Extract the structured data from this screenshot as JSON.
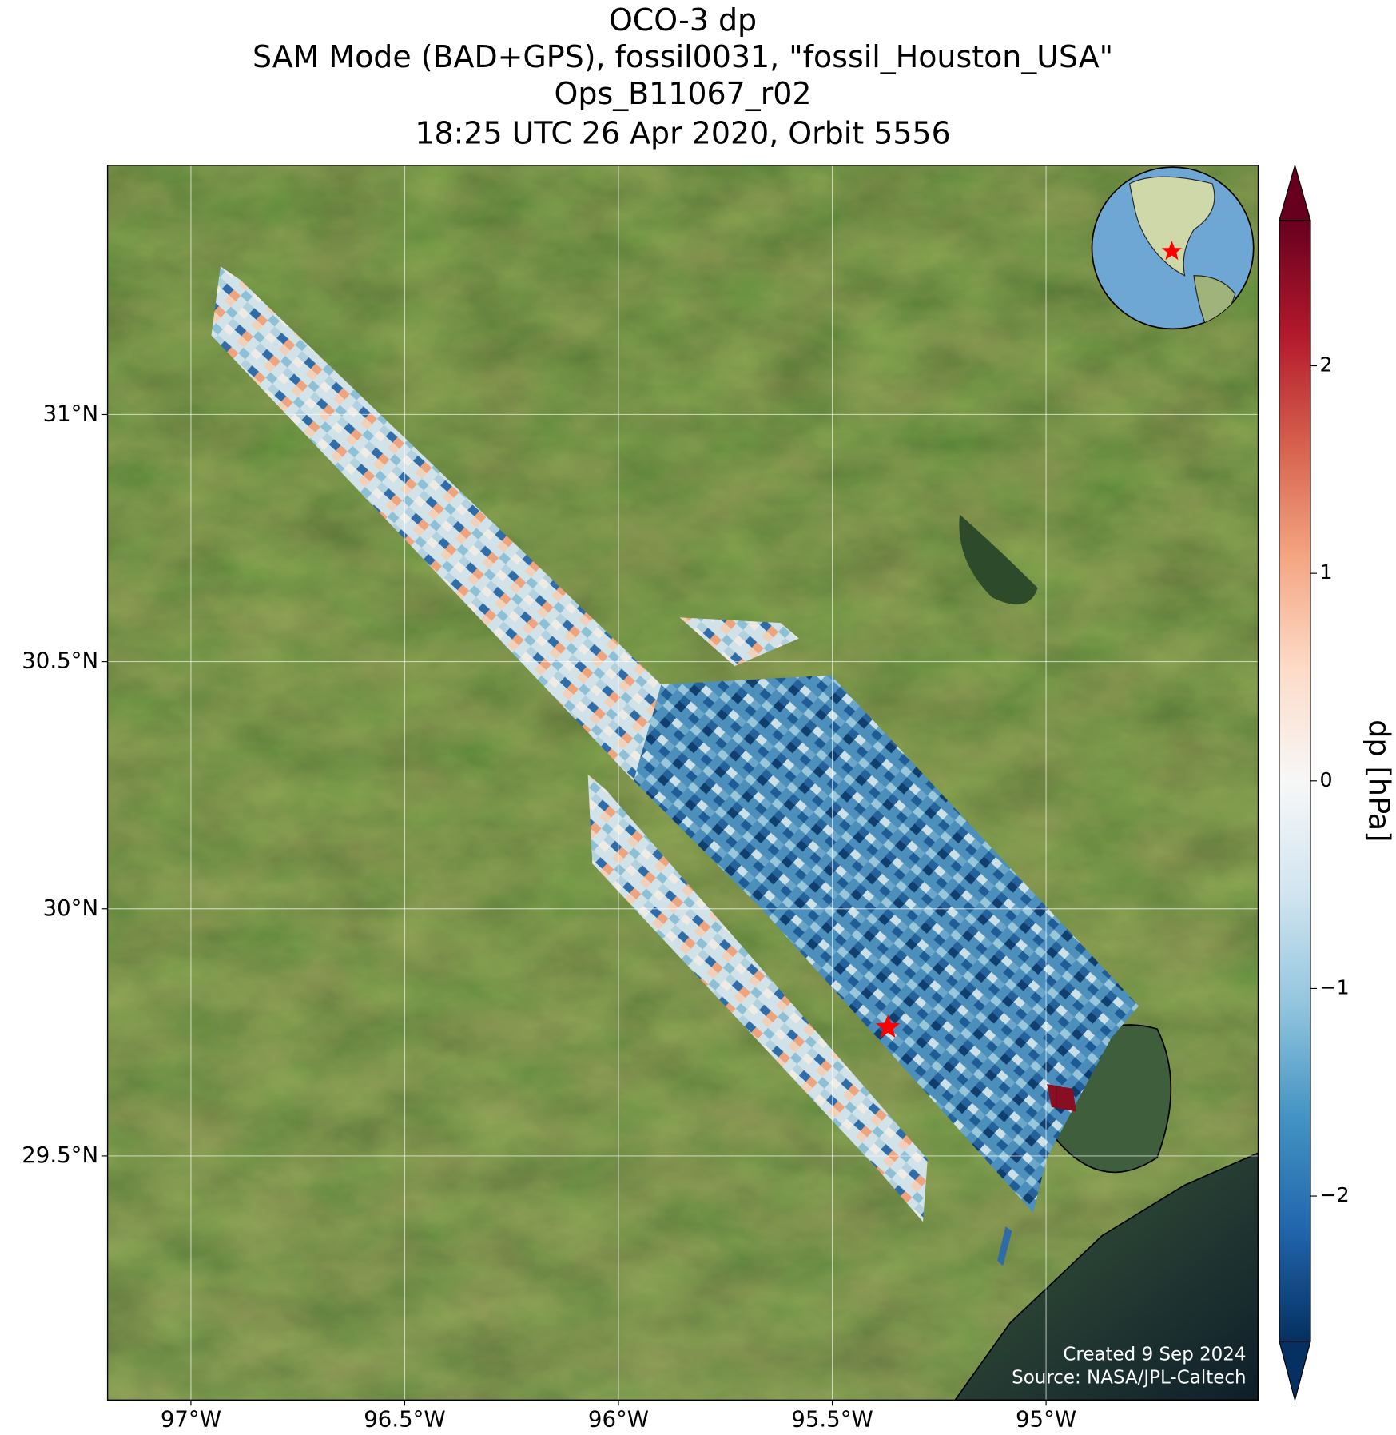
{
  "title_lines": [
    "OCO-3 dp",
    "SAM Mode (BAD+GPS), fossil0031, \"fossil_Houston_USA\"",
    "Ops_B11067_r02",
    "18:25 UTC 26 Apr 2020, Orbit 5556"
  ],
  "map": {
    "xlim": [
      -97.195,
      -94.504
    ],
    "ylim": [
      29.006,
      31.504
    ],
    "xticks": [
      {
        "value": -97,
        "label": "97°W"
      },
      {
        "value": -96.5,
        "label": "96.5°W"
      },
      {
        "value": -96,
        "label": "96°W"
      },
      {
        "value": -95.5,
        "label": "95.5°W"
      },
      {
        "value": -95,
        "label": "95°W"
      }
    ],
    "yticks": [
      {
        "value": 29.5,
        "label": "29.5°N"
      },
      {
        "value": 30,
        "label": "30°N"
      },
      {
        "value": 30.5,
        "label": "30.5°N"
      },
      {
        "value": 31,
        "label": "31°N"
      }
    ],
    "grid": true,
    "site": {
      "lon": -95.37,
      "lat": 29.76,
      "color": "#ff0000"
    }
  },
  "colorbar": {
    "label": "dp [hPa]",
    "clim": [
      -2.7,
      2.7
    ],
    "colormap": "RdBu_r",
    "ticks": [
      {
        "value": -2,
        "label": "−2"
      },
      {
        "value": -1,
        "label": "−1"
      },
      0,
      1,
      2
    ]
  },
  "credits": [
    "Created 9 Sep 2024",
    "Source: NASA/JPL-Caltech"
  ]
}
